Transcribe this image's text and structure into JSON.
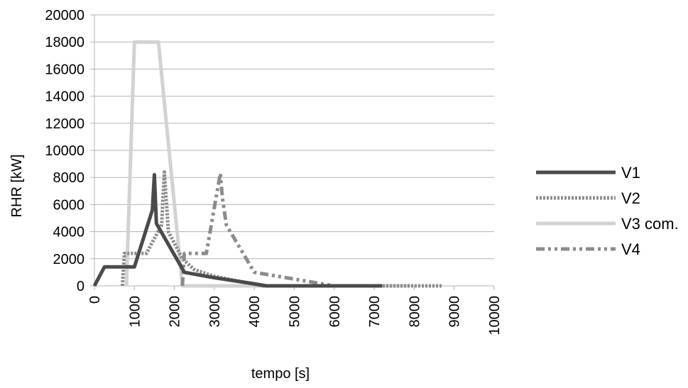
{
  "chart_data": {
    "type": "line",
    "title": "",
    "xlabel": "tempo [s]",
    "ylabel": "RHR [kW]",
    "xlim": [
      0,
      10000
    ],
    "ylim": [
      0,
      20000
    ],
    "x_ticks": [
      "0",
      "1000",
      "2000",
      "3000",
      "4000",
      "5000",
      "6000",
      "7000",
      "8000",
      "9000",
      "10000"
    ],
    "y_ticks": [
      "0",
      "2000",
      "4000",
      "6000",
      "8000",
      "10000",
      "12000",
      "14000",
      "16000",
      "18000",
      "20000"
    ],
    "grid": "horizontal",
    "legend_position": "right",
    "series": [
      {
        "name": "V1",
        "color": "#4a4a4a",
        "style": "solid",
        "x": [
          0,
          250,
          1000,
          1450,
          1500,
          1550,
          2250,
          3000,
          4000,
          4300,
          7200
        ],
        "y": [
          0,
          1400,
          1400,
          5600,
          8200,
          4600,
          1000,
          600,
          150,
          0,
          0
        ]
      },
      {
        "name": "V2",
        "color": "#8c8c8c",
        "style": "dotted",
        "x": [
          700,
          750,
          1300,
          1680,
          1750,
          1850,
          2200,
          2500,
          3000,
          4200,
          8700
        ],
        "y": [
          0,
          2400,
          2400,
          4500,
          8400,
          4000,
          2000,
          1200,
          700,
          0,
          0
        ]
      },
      {
        "name": "V3 com.",
        "color": "#d2d2d2",
        "style": "solid",
        "x": [
          800,
          1000,
          1600,
          2200,
          7900
        ],
        "y": [
          0,
          18000,
          18000,
          0,
          0
        ]
      },
      {
        "name": "V4",
        "color": "#8c8c8c",
        "style": "dash-dot",
        "x": [
          2200,
          2250,
          2800,
          3150,
          3200,
          3300,
          4000,
          6000
        ],
        "y": [
          0,
          2400,
          2400,
          8300,
          6500,
          4500,
          1000,
          0
        ]
      }
    ]
  }
}
